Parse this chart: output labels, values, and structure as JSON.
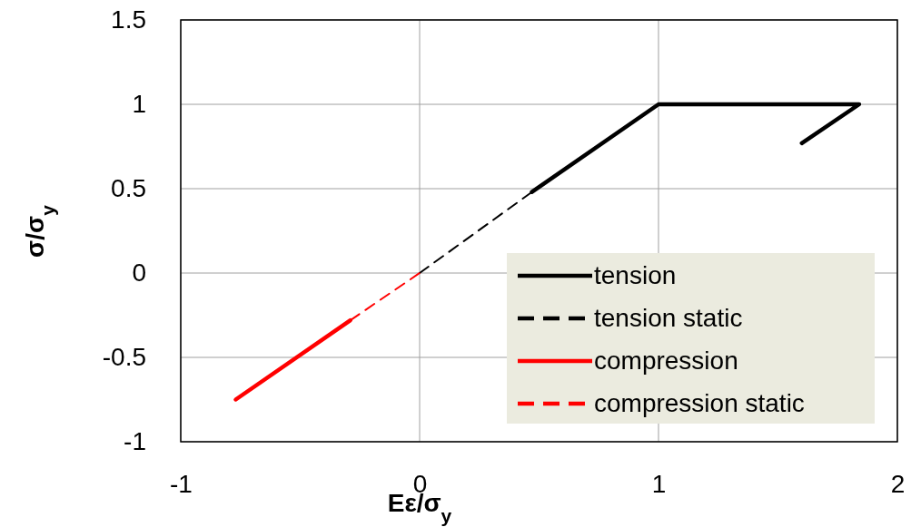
{
  "chart_data": {
    "type": "line",
    "xlabel": "Eε/σ$_{y}$",
    "ylabel": "σ/σ$_{y}$",
    "xlim": [
      -1,
      2
    ],
    "xticks": [
      -1,
      0,
      1,
      2
    ],
    "ylim": [
      -1,
      1.5
    ],
    "yticks": [
      -1,
      -0.5,
      0,
      0.5,
      1,
      1.5
    ],
    "grid": true,
    "legend": "bottom right",
    "marker": "none",
    "series": [
      {
        "name": "tension",
        "color": "#000000",
        "line_style": "solid",
        "x": [
          0.47,
          1,
          1.84,
          1.6
        ],
        "values": [
          0.48,
          1,
          1,
          0.77
        ]
      },
      {
        "name": "tension static",
        "color": "#000000",
        "line_style": "dashed",
        "x": [
          0,
          0.47
        ],
        "values": [
          0,
          0.48
        ]
      },
      {
        "name": "compression",
        "color": "#ff0000",
        "line_style": "solid",
        "x": [
          -0.77,
          -0.29
        ],
        "values": [
          -0.75,
          -0.28
        ]
      },
      {
        "name": "compression static",
        "color": "#ff0000",
        "line_style": "dashed",
        "x": [
          -0.29,
          0
        ],
        "values": [
          -0.28,
          0
        ]
      }
    ]
  }
}
